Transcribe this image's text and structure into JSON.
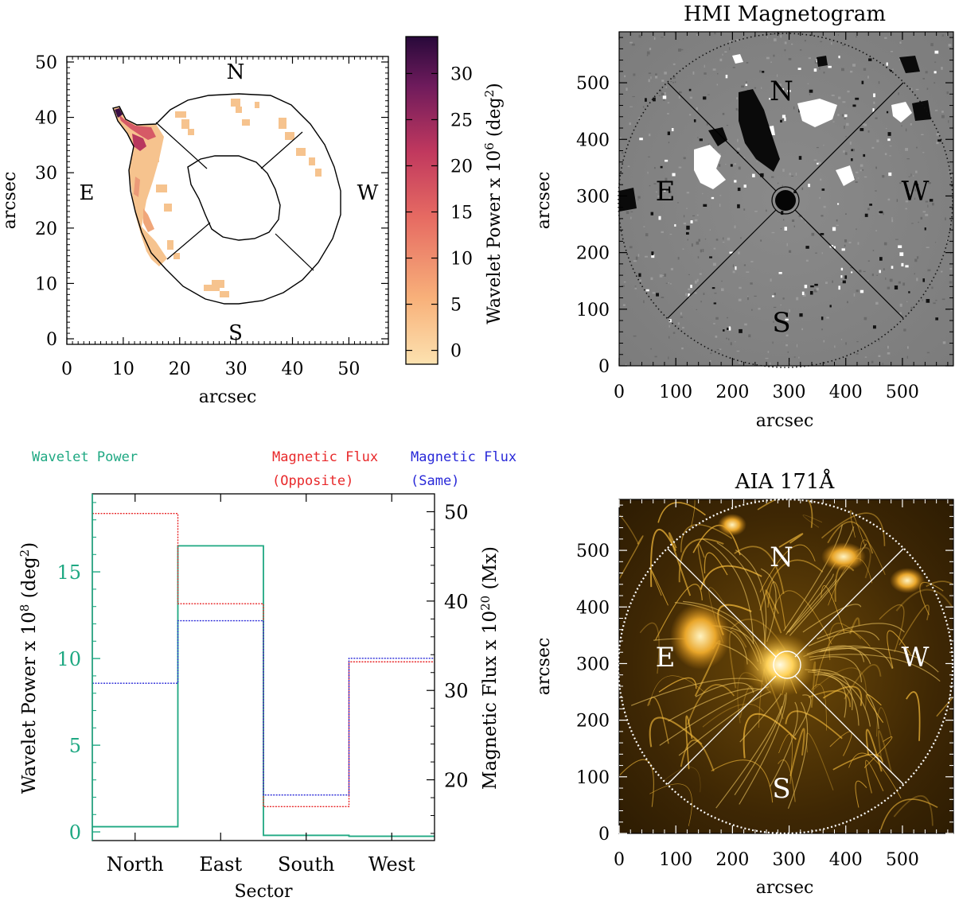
{
  "colors": {
    "wavelet": "#1ea882",
    "flux_opposite": "#e8282a",
    "flux_same": "#2828d8",
    "map_low": "#fcd9a0",
    "map_high": "#2b0a3d"
  },
  "panel_a": {
    "xlabel": "arcsec",
    "ylabel": "arcsec",
    "xticks": [
      "0",
      "10",
      "20",
      "30",
      "40",
      "50"
    ],
    "yticks": [
      "0",
      "10",
      "20",
      "30",
      "40",
      "50"
    ],
    "xlim": [
      0,
      57
    ],
    "ylim": [
      -1,
      51
    ],
    "sectors": {
      "n": "N",
      "e": "E",
      "s": "S",
      "w": "W"
    },
    "colorbar": {
      "label": "Wavelet Power x 10",
      "label_exp": "6",
      "label_unit_pre": " (deg",
      "label_unit_sup": "2",
      "label_unit_post": ")",
      "ticks": [
        "0",
        "5",
        "10",
        "15",
        "20",
        "25",
        "30"
      ],
      "range": [
        -1.5,
        34
      ]
    }
  },
  "panel_b": {
    "title": "HMI Magnetogram",
    "xlabel": "arcsec",
    "ylabel": "arcsec",
    "xticks": [
      "0",
      "100",
      "200",
      "300",
      "400",
      "500"
    ],
    "yticks": [
      "0",
      "100",
      "200",
      "300",
      "400",
      "500"
    ],
    "range": [
      0,
      590
    ],
    "sectors": {
      "n": "N",
      "e": "E",
      "s": "S",
      "w": "W"
    }
  },
  "panel_d": {
    "title": "AIA 171Å",
    "xlabel": "arcsec",
    "ylabel": "arcsec",
    "xticks": [
      "0",
      "100",
      "200",
      "300",
      "400",
      "500"
    ],
    "yticks": [
      "0",
      "100",
      "200",
      "300",
      "400",
      "500"
    ],
    "range": [
      0,
      590
    ],
    "sectors": {
      "n": "N",
      "e": "E",
      "s": "S",
      "w": "W"
    }
  },
  "chart_data": {
    "type": "line",
    "step": true,
    "title": "",
    "xlabel": "Sector",
    "categories": [
      "North",
      "East",
      "South",
      "West"
    ],
    "ylabel_left": "Wavelet Power x 10",
    "ylabel_left_exp": "8",
    "ylabel_left_unit_pre": " (deg",
    "ylabel_left_unit_sup": "2",
    "ylabel_left_unit_post": ")",
    "ylabel_right": "Magnetic Flux x 10",
    "ylabel_right_exp": "20",
    "ylabel_right_unit": " (Mx)",
    "ylim_left": [
      -0.5,
      19.5
    ],
    "ylim_right": [
      13.2,
      52
    ],
    "yticks_left": [
      "0",
      "5",
      "10",
      "15"
    ],
    "yticks_right": [
      "20",
      "30",
      "40",
      "50"
    ],
    "legend": {
      "wavelet": "Wavelet Power",
      "opposite_line1": "Magnetic Flux",
      "opposite_line2": "(Opposite)",
      "same_line1": "Magnetic Flux",
      "same_line2": "(Same)"
    },
    "series": [
      {
        "name": "Wavelet Power",
        "axis": "left",
        "color": "#1ea882",
        "values": [
          0.3,
          16.5,
          -0.2,
          -0.25
        ]
      },
      {
        "name": "Magnetic Flux (Opposite)",
        "axis": "right",
        "color": "#e8282a",
        "values": [
          49.8,
          39.7,
          17.0,
          33.2
        ]
      },
      {
        "name": "Magnetic Flux (Same)",
        "axis": "right",
        "color": "#2828d8",
        "values": [
          30.8,
          37.8,
          18.3,
          33.6
        ]
      }
    ]
  }
}
